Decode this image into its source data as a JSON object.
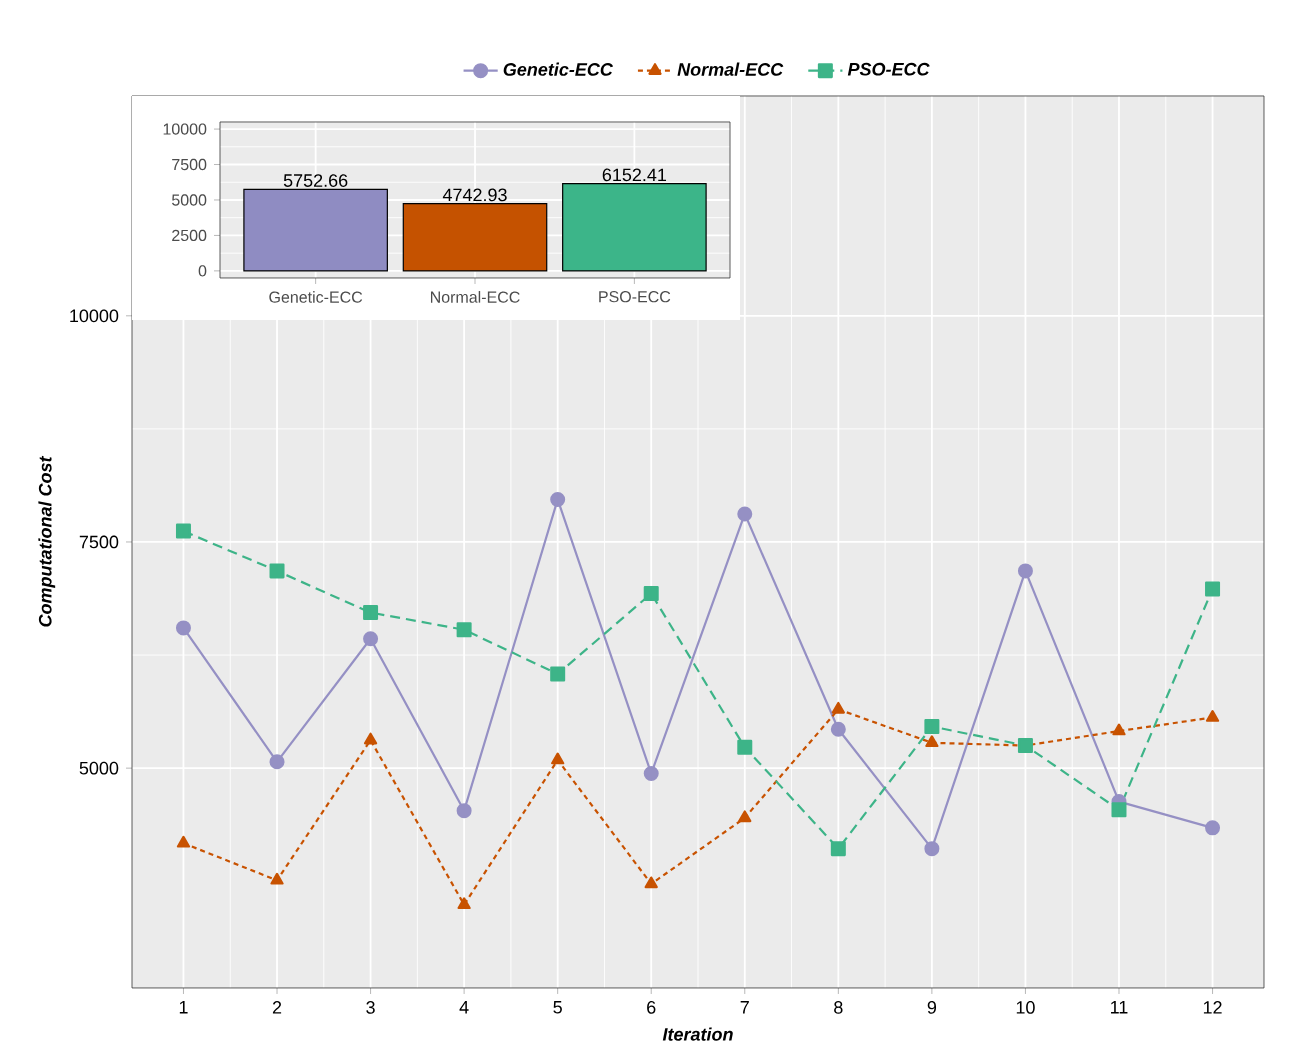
{
  "chart_data": [
    {
      "type": "line",
      "xlabel": "Iteration",
      "ylabel": "Computational Cost",
      "x": [
        1,
        2,
        3,
        4,
        5,
        6,
        7,
        8,
        9,
        10,
        11,
        12
      ],
      "series": [
        {
          "name": "Genetic-ECC",
          "color": "#9590c4",
          "marker": "circle",
          "line_style": "solid",
          "values": [
            6550,
            5070,
            6430,
            4530,
            7970,
            4940,
            7810,
            5430,
            4110,
            7180,
            4630,
            4340
          ]
        },
        {
          "name": "Normal-ECC",
          "color": "#c85200",
          "marker": "triangle",
          "line_style": "dotted",
          "values": [
            4170,
            3760,
            5310,
            3490,
            5090,
            3720,
            4450,
            5650,
            5280,
            5250,
            5410,
            5560
          ]
        },
        {
          "name": "PSO-ECC",
          "color": "#3db488",
          "marker": "square",
          "line_style": "dashed",
          "values": [
            7620,
            7180,
            6720,
            6530,
            6040,
            6930,
            5230,
            4110,
            5460,
            5250,
            4540,
            6980
          ]
        }
      ],
      "xlim": [
        0.45,
        12.55
      ],
      "ylim": [
        2570,
        12430
      ],
      "xticks": [
        1,
        2,
        3,
        4,
        5,
        6,
        7,
        8,
        9,
        10,
        11,
        12
      ],
      "yticks": [
        5000,
        7500,
        10000
      ],
      "grid": true,
      "legend": "top"
    },
    {
      "type": "bar",
      "categories": [
        "Genetic-ECC",
        "Normal-ECC",
        "PSO-ECC"
      ],
      "values": [
        5752.66,
        4742.93,
        6152.41
      ],
      "colors": [
        "#8f8cc2",
        "#c55200",
        "#3cb589"
      ],
      "ylim": [
        -500,
        10500
      ],
      "yticks": [
        0,
        2500,
        5000,
        7500,
        10000
      ],
      "grid": true,
      "data_labels": true
    }
  ]
}
